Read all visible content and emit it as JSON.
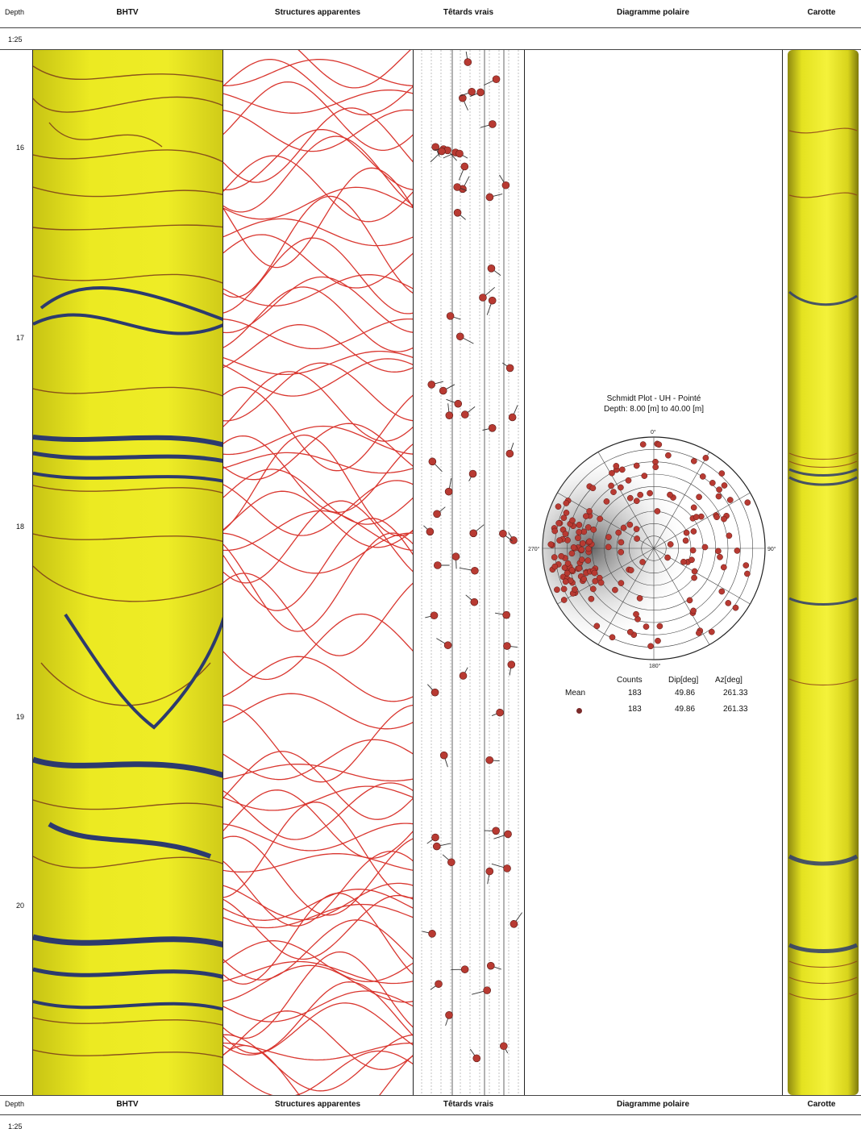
{
  "header": {
    "depth_label": "Depth",
    "scale_label": "1:25",
    "columns": [
      "BHTV",
      "Structures apparentes",
      "Têtards vrais",
      "Diagramme polaire",
      "Carotte"
    ]
  },
  "footer": {
    "depth_label": "Depth",
    "scale_label": "1:25",
    "columns": [
      "BHTV",
      "Structures apparentes",
      "Têtards vrais",
      "Diagramme polaire",
      "Carotte"
    ]
  },
  "depth_axis": {
    "ticks": [
      "16",
      "17",
      "18",
      "19",
      "20"
    ]
  },
  "polar_plot": {
    "title_line1": "Schmidt Plot - UH - Pointé",
    "title_line2": "Depth: 8.00 [m] to 40.00 [m]",
    "compass": {
      "n": "0°",
      "e": "90°",
      "s": "180°",
      "w": "270°"
    }
  },
  "stats": {
    "headers": [
      "Counts",
      "Dip[deg]",
      "Az[deg]"
    ],
    "rows": [
      {
        "label": "Mean",
        "counts": "183",
        "dip": "49.86",
        "az": "261.33"
      },
      {
        "label": "",
        "counts": "183",
        "dip": "49.86",
        "az": "261.33"
      }
    ]
  },
  "colors": {
    "image_yellow": "#e8e71a",
    "fracture_blue": "#2c3a6e",
    "sinusoid_red": "#d9362f",
    "tadpole_red": "#b83a32"
  }
}
